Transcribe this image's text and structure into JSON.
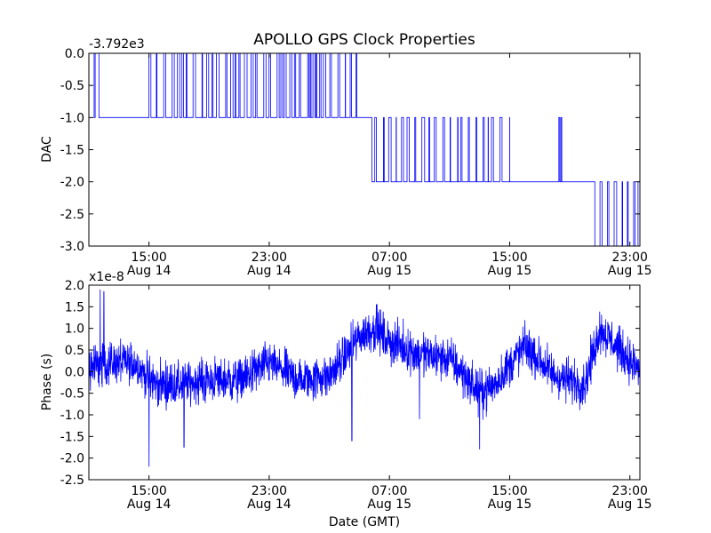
{
  "figure": {
    "title": "APOLLO GPS Clock Properties",
    "line_color": "#0000ff"
  },
  "chart_data": [
    {
      "type": "line",
      "title": "APOLLO GPS Clock Properties",
      "ylabel": "DAC",
      "xlabel": "",
      "offset_text": "-3.792e3",
      "xlim": [
        "2012-08-14 11:00",
        "2012-08-15 23:40"
      ],
      "ylim": [
        -3.0,
        0.0
      ],
      "yticks": [
        0.0,
        -0.5,
        -1.0,
        -1.5,
        -2.0,
        -2.5,
        -3.0
      ],
      "ytick_labels": [
        "0.0",
        "-0.5",
        "-1.0",
        "-1.5",
        "-2.0",
        "-2.5",
        "-3.0"
      ],
      "xtick_labels": [
        {
          "t": "2012-08-14 15:00",
          "line1": "15:00",
          "line2": "Aug 14"
        },
        {
          "t": "2012-08-14 23:00",
          "line1": "23:00",
          "line2": "Aug 14"
        },
        {
          "t": "2012-08-15 07:00",
          "line1": "07:00",
          "line2": "Aug 15"
        },
        {
          "t": "2012-08-15 15:00",
          "line1": "15:00",
          "line2": "Aug 15"
        },
        {
          "t": "2012-08-15 23:00",
          "line1": "23:00",
          "line2": "Aug 15"
        }
      ],
      "grid": false,
      "series": [
        {
          "levels_by_interval": [
            {
              "start": "2012-08-14 11:00",
              "end": "2012-08-14 11:40",
              "level": 0.0,
              "toggles_to": -1.0
            },
            {
              "start": "2012-08-14 11:40",
              "end": "2012-08-14 14:30",
              "level": -1.0
            },
            {
              "start": "2012-08-14 14:30",
              "end": "2012-08-15 04:50",
              "level": -1.0,
              "toggles_to": 0.0
            },
            {
              "start": "2012-08-15 04:50",
              "end": "2012-08-15 05:50",
              "level": -1.0
            },
            {
              "start": "2012-08-15 05:50",
              "end": "2012-08-15 15:00",
              "level": -2.0,
              "toggles_to": -1.0
            },
            {
              "start": "2012-08-15 15:00",
              "end": "2012-08-15 17:50",
              "level": -2.0
            },
            {
              "start": "2012-08-15 17:50",
              "end": "2012-08-15 18:40",
              "level": -2.0,
              "toggles_to": -1.0
            },
            {
              "start": "2012-08-15 18:40",
              "end": "2012-08-15 20:40",
              "level": -2.0
            },
            {
              "start": "2012-08-15 20:40",
              "end": "2012-08-15 23:40",
              "level": -3.0,
              "toggles_to": -2.0
            }
          ]
        }
      ]
    },
    {
      "type": "line",
      "xlabel": "Date (GMT)",
      "ylabel": "Phase (s)",
      "offset_text": "x1e-8",
      "xlim": [
        "2012-08-14 11:00",
        "2012-08-15 23:40"
      ],
      "ylim": [
        -2.5,
        2.0
      ],
      "yticks": [
        2.0,
        1.5,
        1.0,
        0.5,
        0.0,
        -0.5,
        -1.0,
        -1.5,
        -2.0,
        -2.5
      ],
      "ytick_labels": [
        "2.0",
        "1.5",
        "1.0",
        "0.5",
        "0.0",
        "-0.5",
        "-1.0",
        "-1.5",
        "-2.0",
        "-2.5"
      ],
      "xtick_labels": [
        {
          "t": "2012-08-14 15:00",
          "line1": "15:00",
          "line2": "Aug 14"
        },
        {
          "t": "2012-08-14 23:00",
          "line1": "23:00",
          "line2": "Aug 14"
        },
        {
          "t": "2012-08-15 07:00",
          "line1": "07:00",
          "line2": "Aug 15"
        },
        {
          "t": "2012-08-15 15:00",
          "line1": "15:00",
          "line2": "Aug 15"
        },
        {
          "t": "2012-08-15 23:00",
          "line1": "23:00",
          "line2": "Aug 15"
        }
      ],
      "grid": false,
      "series": [
        {
          "trend": [
            {
              "t": "2012-08-14 11:00",
              "y": 0.1
            },
            {
              "t": "2012-08-14 12:30",
              "y": 0.2
            },
            {
              "t": "2012-08-14 14:00",
              "y": 0.2
            },
            {
              "t": "2012-08-14 15:30",
              "y": -0.3
            },
            {
              "t": "2012-08-14 17:00",
              "y": -0.3
            },
            {
              "t": "2012-08-14 19:00",
              "y": -0.2
            },
            {
              "t": "2012-08-14 21:00",
              "y": -0.2
            },
            {
              "t": "2012-08-14 23:00",
              "y": 0.2
            },
            {
              "t": "2012-08-15 01:00",
              "y": -0.2
            },
            {
              "t": "2012-08-15 03:00",
              "y": -0.1
            },
            {
              "t": "2012-08-15 05:00",
              "y": 0.8
            },
            {
              "t": "2012-08-15 06:00",
              "y": 1.0
            },
            {
              "t": "2012-08-15 07:00",
              "y": 0.7
            },
            {
              "t": "2012-08-15 09:00",
              "y": 0.4
            },
            {
              "t": "2012-08-15 11:00",
              "y": 0.3
            },
            {
              "t": "2012-08-15 13:00",
              "y": -0.5
            },
            {
              "t": "2012-08-15 14:00",
              "y": -0.3
            },
            {
              "t": "2012-08-15 16:00",
              "y": 0.6
            },
            {
              "t": "2012-08-15 18:00",
              "y": -0.1
            },
            {
              "t": "2012-08-15 20:00",
              "y": -0.3
            },
            {
              "t": "2012-08-15 21:00",
              "y": 1.0
            },
            {
              "t": "2012-08-15 23:40",
              "y": 0.0
            }
          ],
          "noise_amplitude": 0.35,
          "spikes": [
            {
              "t": "2012-08-14 11:45",
              "y": 1.9
            },
            {
              "t": "2012-08-14 12:00",
              "y": 1.85
            },
            {
              "t": "2012-08-14 15:00",
              "y": -2.2
            },
            {
              "t": "2012-08-14 17:20",
              "y": -1.75
            },
            {
              "t": "2012-08-15 04:30",
              "y": -1.6
            },
            {
              "t": "2012-08-15 06:10",
              "y": 1.55
            },
            {
              "t": "2012-08-15 09:00",
              "y": -1.1
            },
            {
              "t": "2012-08-15 13:00",
              "y": -1.8
            }
          ]
        }
      ]
    }
  ]
}
